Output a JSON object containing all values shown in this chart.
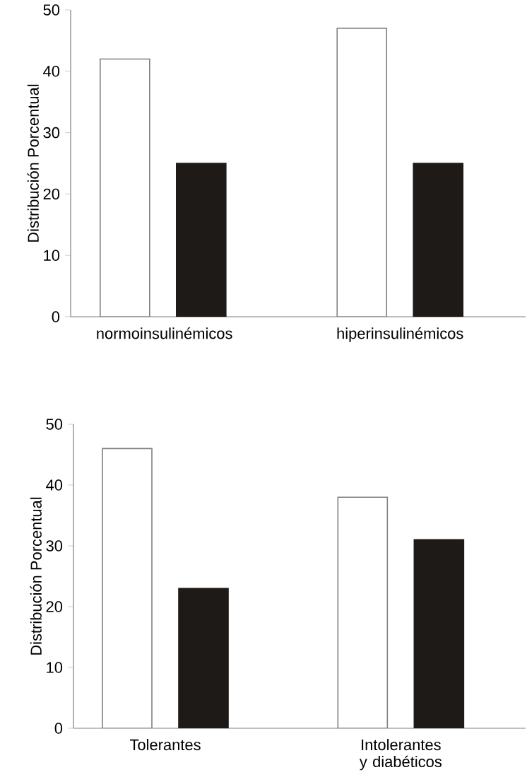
{
  "chart_data": [
    {
      "type": "bar",
      "ylabel": "Distribución Porcentual",
      "categories": [
        "normoinsulinémicos",
        "hiperinsulinémicos"
      ],
      "series": [
        {
          "color": "#ffffff",
          "values": [
            42,
            47
          ]
        },
        {
          "color": "#1e1a17",
          "values": [
            25,
            25
          ]
        }
      ],
      "ylim": [
        0,
        50
      ],
      "yticks": [
        0,
        10,
        20,
        30,
        40,
        50
      ]
    },
    {
      "type": "bar",
      "ylabel": "Distribución Porcentual",
      "categories": [
        "Tolerantes",
        "Intolerantes y diabéticos"
      ],
      "series": [
        {
          "color": "#ffffff",
          "values": [
            46,
            38
          ]
        },
        {
          "color": "#1e1a17",
          "values": [
            23,
            31
          ]
        }
      ],
      "ylim": [
        0,
        50
      ],
      "yticks": [
        0,
        10,
        20,
        30,
        40,
        50
      ]
    }
  ]
}
